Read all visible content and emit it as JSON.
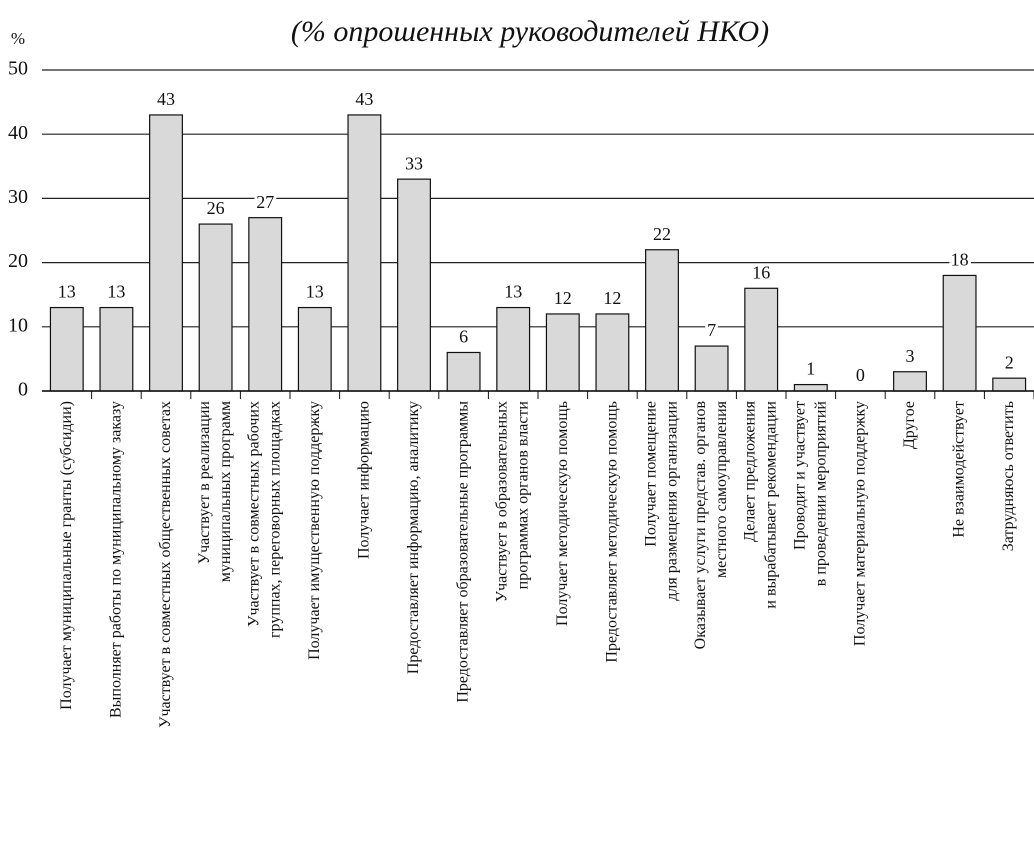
{
  "chart_data": {
    "type": "bar",
    "title": "(% опрошенных руководителей НКО)",
    "y_label": "%",
    "categories": [
      "Получает муниципальные гранты (субсидии)",
      "Выполняет работы по муниципальному заказу",
      "Участвует в совместных общественных советах",
      "Участвует в реализации\nмуниципальных программ",
      "Участвует в совместных рабочих\nгруппах, переговорных площадках",
      "Получает имущественную поддержку",
      "Получает информацию",
      "Предоставляет информацию, аналитику",
      "Предоставляет образовательные программы",
      "Участвует в образовательных\nпрограммах органов власти",
      "Получает методическую помощь",
      "Предоставляет методическую помощь",
      "Получает помещение\nдля размещения организации",
      "Оказывает услуги представ. органов\nместного самоуправления",
      "Делает предложения\nи вырабатывает рекомендации",
      "Проводит и участвует\nв проведении мероприятий",
      "Получает материальную поддержку",
      "Другое",
      "Не взаимодействует",
      "Затрудняюсь ответить"
    ],
    "values": [
      13,
      13,
      43,
      26,
      27,
      13,
      43,
      33,
      6,
      13,
      12,
      12,
      22,
      7,
      16,
      1,
      0,
      3,
      18,
      2
    ],
    "color": "#d9d9d9",
    "ylim": [
      0,
      50
    ],
    "yticks": [
      0,
      10,
      20,
      30,
      40,
      50
    ],
    "grid": true
  }
}
